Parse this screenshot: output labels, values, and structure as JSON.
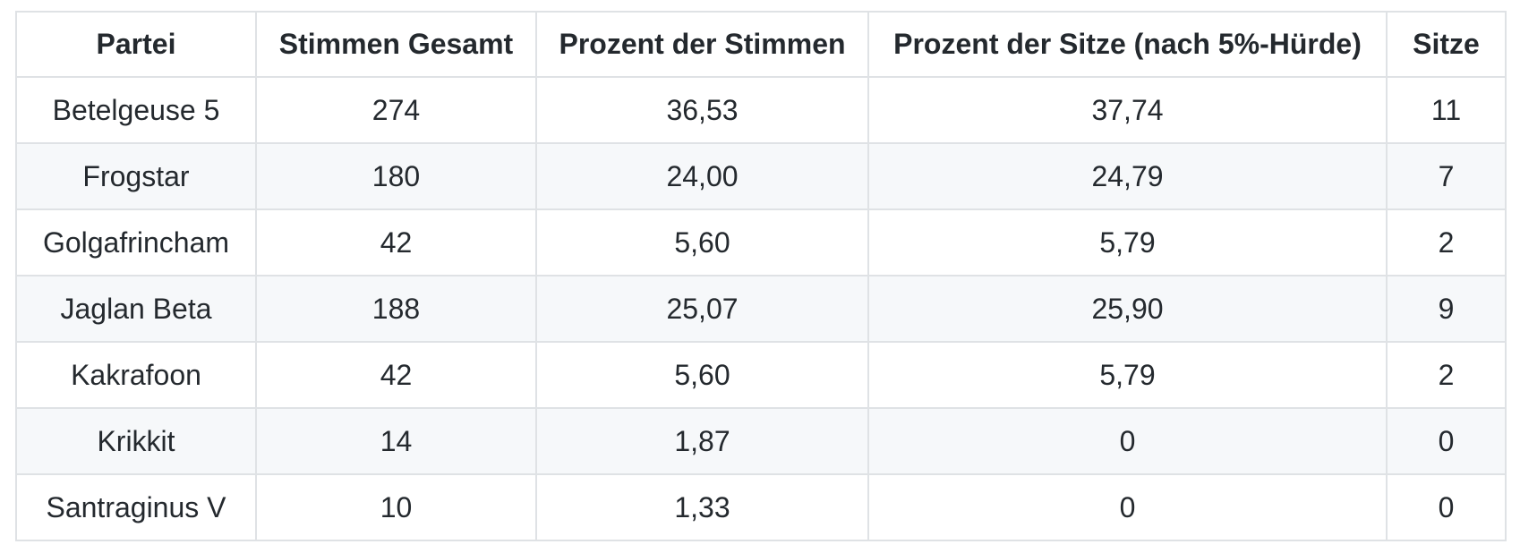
{
  "chart_data": {
    "type": "table",
    "columns": [
      "Partei",
      "Stimmen Gesamt",
      "Prozent der Stimmen",
      "Prozent der Sitze (nach 5%-Hürde)",
      "Sitze"
    ],
    "rows": [
      [
        "Betelgeuse 5",
        "274",
        "36,53",
        "37,74",
        "11"
      ],
      [
        "Frogstar",
        "180",
        "24,00",
        "24,79",
        "7"
      ],
      [
        "Golgafrincham",
        "42",
        "5,60",
        "5,79",
        "2"
      ],
      [
        "Jaglan Beta",
        "188",
        "25,07",
        "25,90",
        "9"
      ],
      [
        "Kakrafoon",
        "42",
        "5,60",
        "5,79",
        "2"
      ],
      [
        "Krikkit",
        "14",
        "1,87",
        "0",
        "0"
      ],
      [
        "Santraginus V",
        "10",
        "1,33",
        "0",
        "0"
      ]
    ]
  },
  "colors": {
    "text": "#24292e",
    "border": "#dfe2e5",
    "stripe": "#f6f8fa",
    "background": "#ffffff"
  }
}
